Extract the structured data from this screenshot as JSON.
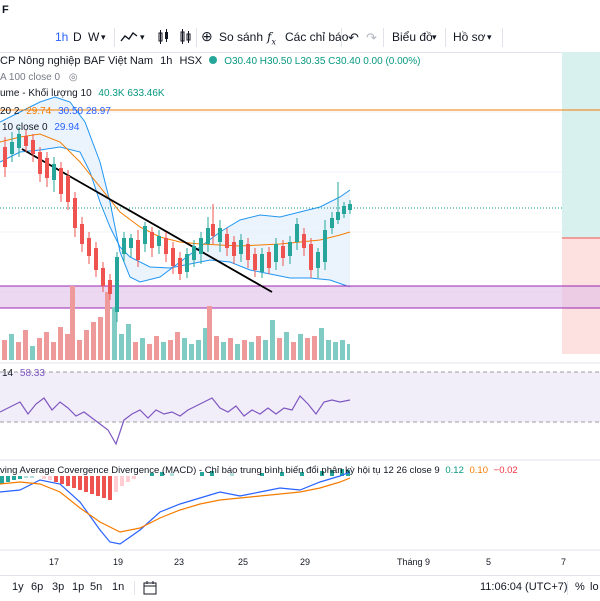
{
  "top_strip": {
    "title": "F"
  },
  "toolbar": {
    "interval": "1h",
    "interval_d": "D",
    "interval_w": "W",
    "compare_label": "So sánh",
    "indicators_label": "Các chỉ báo",
    "layout_label": "Biểu đồ",
    "profile_label": "Hồ sơ"
  },
  "symbol": {
    "name": "CP Nông nghiệp BAF Việt Nam",
    "interval": "1h",
    "exchange": "HSX",
    "ohlc": "O30.40 H30.50 L30.35 C30.40 0.00 (0.00%)"
  },
  "legends": {
    "ma": "A 100 close 0",
    "volume_name": "ume - Khối lượng 10",
    "volume_values": "40.3K 633.46K",
    "bb_params": "20 2",
    "bb_values": [
      "29.74",
      "30.50",
      "28.97"
    ],
    "ma10": "10 close 0",
    "ma10_value": "29.94",
    "rsi": "14",
    "rsi_value": "58.33",
    "macd": "ving Average Covergence Divergence (MACD) - Chỉ báo trung bình biến đổi phân kỳ hội tụ 12 26 close 9",
    "macd_values": [
      "0.12",
      "0.10",
      "−0.02"
    ]
  },
  "xaxis": {
    "labels": [
      "17",
      "19",
      "23",
      "25",
      "29",
      "Tháng 9",
      "5",
      "7"
    ]
  },
  "bottom": {
    "ranges": [
      "1y",
      "6p",
      "3p",
      "1p",
      "5n",
      "1n"
    ],
    "time": "11:06:04 (UTC+7)",
    "pct": "%",
    "log": "lo"
  },
  "colors": {
    "up": "#26a69a",
    "down": "#ef5350",
    "bb": "#2196f3",
    "ma": "#f57c00",
    "accent": "#2962ff"
  },
  "chart_data": {
    "type": "candlestick",
    "candles_close_approx": [
      30.5,
      30.6,
      30.4,
      30.3,
      30.2,
      29.8,
      29.2,
      28.9,
      28.4,
      28.1,
      28.5,
      28.9,
      29.3,
      29.4,
      29.5,
      29.3,
      29.2,
      29.4,
      29.5,
      29.6,
      29.5,
      29.4,
      29.6,
      29.7,
      29.9,
      30.2,
      30.4
    ]
  }
}
